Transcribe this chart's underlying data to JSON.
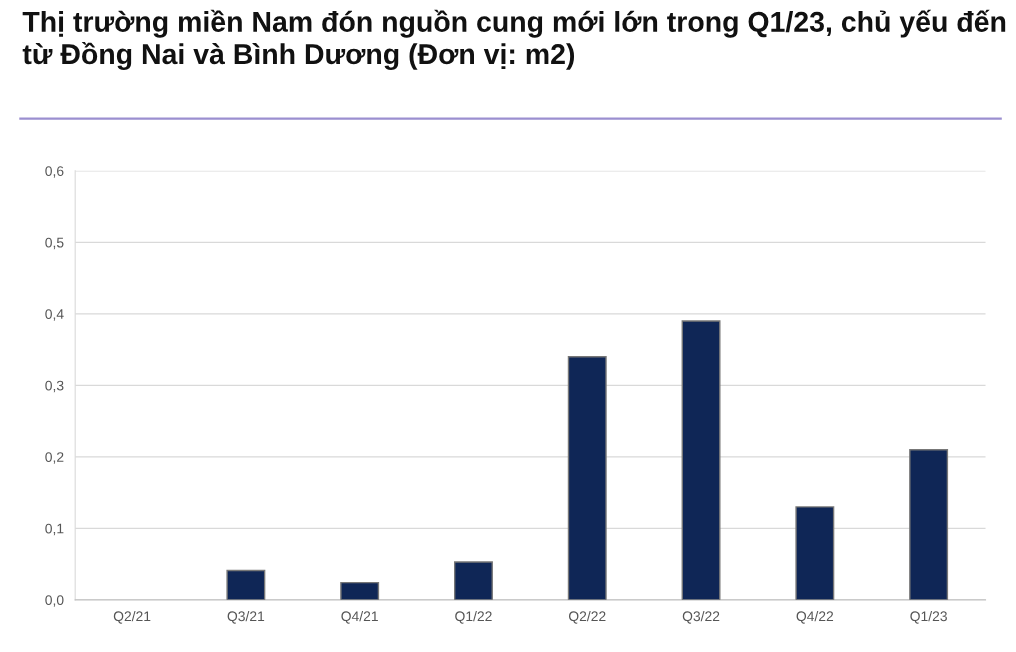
{
  "chart_data": {
    "type": "bar",
    "title": "Thị trường miền Nam đón nguồn cung mới lớn trong Q1/23, chủ yếu đến từ Đồng Nai và Bình Dương (Đơn vị: m2)",
    "categories": [
      "Q2/21",
      "Q3/21",
      "Q4/21",
      "Q1/22",
      "Q2/22",
      "Q3/22",
      "Q4/22",
      "Q1/23"
    ],
    "values": [
      0,
      0.041,
      0.024,
      0.053,
      0.34,
      0.39,
      0.13,
      0.21
    ],
    "color": "#0f2656",
    "ylim": [
      0,
      0.6
    ],
    "yticks": [
      {
        "value": 0,
        "label": "0,0"
      },
      {
        "value": 0.1,
        "label": "0,1"
      },
      {
        "value": 0.2,
        "label": "0,2"
      },
      {
        "value": 0.3,
        "label": "0,3"
      },
      {
        "value": 0.4,
        "label": "0,4"
      },
      {
        "value": 0.5,
        "label": "0,5"
      },
      {
        "value": 0.6,
        "label": "0,6"
      }
    ],
    "grid": "y"
  }
}
